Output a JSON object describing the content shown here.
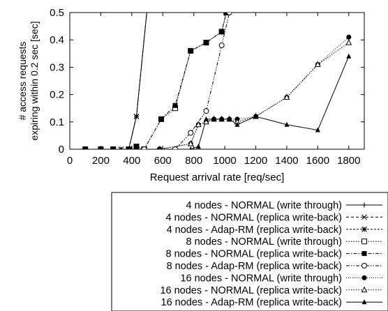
{
  "chart_data": {
    "type": "line",
    "xlabel": "Request arrival rate [req/sec]",
    "ylabel_lines": [
      "# access requests",
      "expiring within 0.2 sec [sec]"
    ],
    "xlim": [
      0,
      1900
    ],
    "ylim": [
      0,
      0.5
    ],
    "xticks": [
      0,
      200,
      400,
      600,
      800,
      1000,
      1200,
      1400,
      1600,
      1800
    ],
    "yticks": [
      0,
      0.1,
      0.2,
      0.3,
      0.4,
      0.5
    ],
    "ytick_labels": [
      "0",
      "0.1",
      "0.2",
      "0.3",
      "0.4",
      "0.5"
    ],
    "legend_position": "bottom-right, below plot",
    "series": [
      {
        "name": "4 nodes - NORMAL (write through)",
        "marker": "plus",
        "dash": "solid",
        "x": [
          100,
          200,
          280,
          330,
          380,
          430,
          500
        ],
        "y": [
          0,
          0,
          0,
          0,
          0,
          0.12,
          0.52
        ]
      },
      {
        "name": "4 nodes - NORMAL (replica write-back)",
        "marker": "cross",
        "dash": "dashed",
        "x": [
          100,
          200,
          280,
          330,
          380,
          430,
          500
        ],
        "y": [
          0,
          0,
          0,
          0,
          0,
          0.12,
          0.52
        ]
      },
      {
        "name": "4 nodes - Adap-RM (replica write-back)",
        "marker": "asterisk",
        "dash": "dashed-fine",
        "x": [
          100,
          200,
          280,
          330,
          380,
          430,
          500
        ],
        "y": [
          0,
          0,
          0,
          0,
          0,
          0.12,
          0.52
        ]
      },
      {
        "name": "8 nodes - NORMAL (write through)",
        "marker": "open-square",
        "dash": "dotted",
        "x": [
          100,
          200,
          280,
          380,
          430,
          480,
          590,
          680,
          780,
          880,
          980,
          1010
        ],
        "y": [
          0,
          0,
          0,
          0,
          0.01,
          0,
          0.11,
          0.15,
          0.36,
          0.39,
          0.43,
          0.5
        ]
      },
      {
        "name": "8 nodes - NORMAL (replica write-back)",
        "marker": "filled-square",
        "dash": "dash-dot",
        "x": [
          100,
          200,
          280,
          380,
          430,
          480,
          590,
          680,
          780,
          880,
          980,
          1010
        ],
        "y": [
          0,
          0,
          0,
          0,
          0.01,
          0,
          0.11,
          0.16,
          0.36,
          0.39,
          0.43,
          0.5
        ]
      },
      {
        "name": "8 nodes - Adap-RM (replica write-back)",
        "marker": "open-circle",
        "dash": "dash-dot-dot",
        "x": [
          480,
          580,
          680,
          780,
          880,
          980,
          1030
        ],
        "y": [
          0,
          0,
          0,
          0.06,
          0.14,
          0.38,
          0.5
        ]
      },
      {
        "name": "16 nodes - NORMAL (write through)",
        "marker": "filled-circle",
        "dash": "dotted-fine",
        "x": [
          580,
          780,
          830,
          880,
          930,
          980,
          1030,
          1080,
          1200,
          1400,
          1600,
          1800
        ],
        "y": [
          0,
          0.02,
          0.09,
          0.1,
          0.11,
          0.11,
          0.11,
          0.11,
          0.12,
          0.19,
          0.31,
          0.41
        ]
      },
      {
        "name": "16 nodes - NORMAL (replica write-back)",
        "marker": "open-triangle",
        "dash": "dotted",
        "x": [
          580,
          780,
          830,
          880,
          930,
          980,
          1030,
          1080,
          1200,
          1400,
          1600,
          1800
        ],
        "y": [
          0,
          0.02,
          0.09,
          0.1,
          0.11,
          0.11,
          0.11,
          0.1,
          0.12,
          0.19,
          0.31,
          0.39
        ]
      },
      {
        "name": "16 nodes - Adap-RM (replica write-back)",
        "marker": "filled-triangle",
        "dash": "solid",
        "x": [
          580,
          780,
          830,
          880,
          930,
          980,
          1030,
          1080,
          1200,
          1400,
          1600,
          1800
        ],
        "y": [
          0,
          0,
          0.01,
          0.11,
          0.11,
          0.11,
          0.11,
          0.09,
          0.12,
          0.09,
          0.07,
          0.34
        ]
      }
    ]
  }
}
